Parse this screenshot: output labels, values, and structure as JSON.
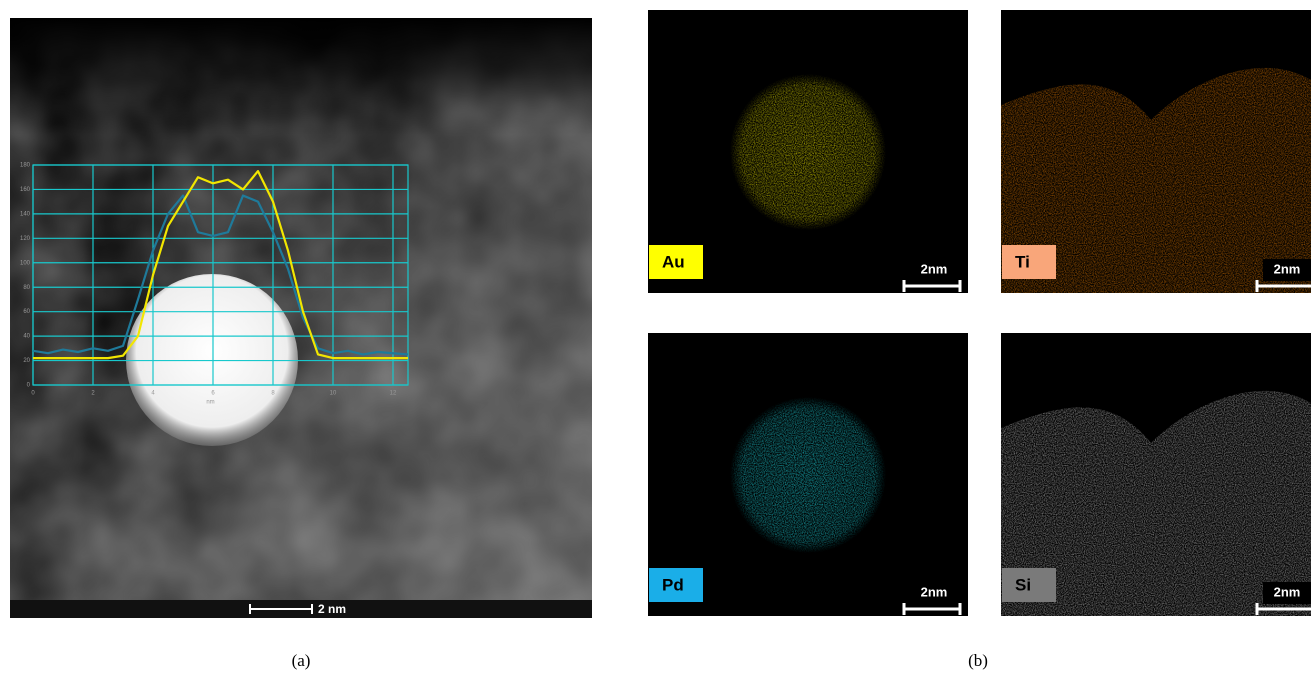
{
  "panel_a": {
    "label": "(a)",
    "scale_bar": "2 nm",
    "inset_chart": {
      "type": "line",
      "x_label": "nm",
      "xlim": [
        0,
        12.5
      ],
      "ylim": [
        0,
        180
      ],
      "xticks": [
        0,
        2,
        4,
        6,
        8,
        10,
        12
      ],
      "yticks": [
        0,
        20,
        40,
        60,
        80,
        100,
        120,
        140,
        160,
        180
      ],
      "grid": true,
      "x": [
        0,
        0.5,
        1,
        1.5,
        2,
        2.5,
        3,
        3.5,
        4,
        4.5,
        5,
        5.5,
        6,
        6.5,
        7,
        7.5,
        8,
        8.5,
        9,
        9.5,
        10,
        10.5,
        11,
        11.5,
        12,
        12.5
      ],
      "series": [
        {
          "color": "#1f7a9a",
          "values": [
            28,
            26,
            29,
            27,
            30,
            28,
            32,
            70,
            110,
            140,
            155,
            125,
            122,
            125,
            155,
            150,
            125,
            95,
            55,
            30,
            26,
            28,
            25,
            27,
            26,
            25
          ]
        },
        {
          "color": "#f2e600",
          "values": [
            22,
            22,
            22,
            22,
            22,
            22,
            24,
            40,
            90,
            130,
            150,
            170,
            165,
            168,
            160,
            175,
            150,
            110,
            60,
            25,
            22,
            22,
            22,
            22,
            22,
            22
          ]
        }
      ]
    }
  },
  "panel_b": {
    "label": "(b)",
    "maps": [
      {
        "element": "Au",
        "scale_bar": "2nm",
        "color": "#e6e000",
        "label_color": "#ffff00",
        "shape": "particle"
      },
      {
        "element": "Ti",
        "scale_bar": "2nm",
        "color": "#e07800",
        "label_color": "#f9a67a",
        "shape": "support"
      },
      {
        "element": "Pd",
        "scale_bar": "2nm",
        "color": "#1fd6e0",
        "label_color": "#1aaee8",
        "shape": "particle"
      },
      {
        "element": "Si",
        "scale_bar": "2nm",
        "color": "#bbbbbb",
        "label_color": "#7a7a7a",
        "shape": "support"
      }
    ]
  }
}
